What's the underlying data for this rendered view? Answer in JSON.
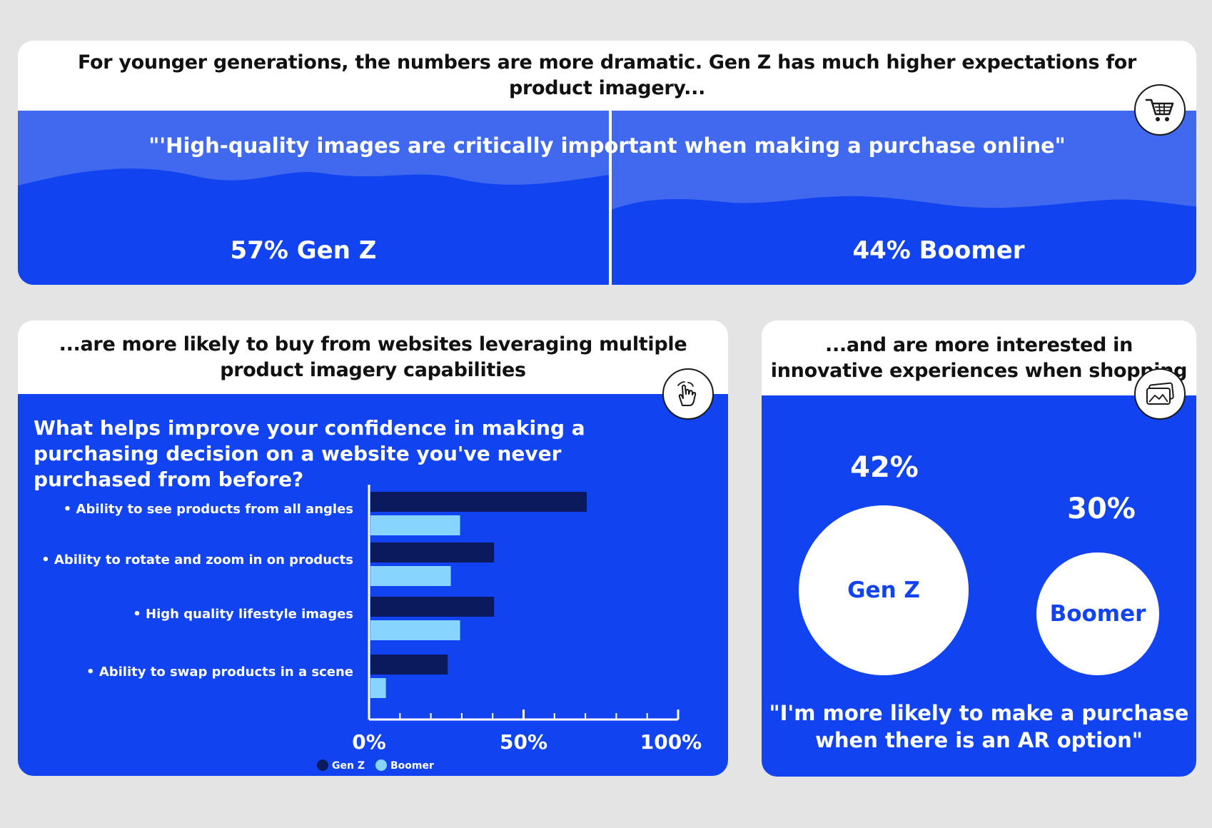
{
  "top": {
    "title": "For younger generations, the numbers are more dramatic. Gen Z has much higher expectations for product imagery...",
    "quote": "\"'High-quality images are critically important when making a purchase online\"",
    "genz_stat": "57% Gen Z",
    "boomer_stat": "44% Boomer",
    "icon": "shopping-cart-icon"
  },
  "chart_card": {
    "title": "...are more likely to buy from websites leveraging multiple product imagery capabilities",
    "question": "What helps improve your confidence in making a purchasing decision on a website you've never purchased from before?",
    "icon": "hand-swipe-icon"
  },
  "chart_data": {
    "type": "bar",
    "orientation": "horizontal",
    "categories": [
      "Ability to see products from all angles",
      "Ability to rotate and zoom in on products",
      "High quality lifestyle images",
      "Ability to swap products in a scene"
    ],
    "series": [
      {
        "name": "Gen Z",
        "color": "#0a1a5c",
        "values": [
          70,
          40,
          40,
          25
        ]
      },
      {
        "name": "Boomer",
        "color": "#87d4ff",
        "values": [
          29,
          26,
          29,
          5
        ]
      }
    ],
    "xlim": [
      0,
      100
    ],
    "tick_labels": [
      "0%",
      "50%",
      "100%"
    ],
    "tick_values": [
      0,
      50,
      100
    ],
    "legend": [
      "Gen Z",
      "Boomer"
    ],
    "legend_position": "bottom-center"
  },
  "ar_card": {
    "title": "...and are more interested in innovative experiences when shopping",
    "genz_pct": "42%",
    "genz_label": "Gen Z",
    "boomer_pct": "30%",
    "boomer_label": "Boomer",
    "quote": "\"I'm more likely to make a purchase when there is an AR option\"",
    "icon": "image-cards-icon"
  },
  "colors": {
    "background": "#e4e4e4",
    "blue_light": "#4169ef",
    "blue_main": "#1144f0",
    "navy": "#0a1a5c",
    "sky": "#87d4ff"
  }
}
